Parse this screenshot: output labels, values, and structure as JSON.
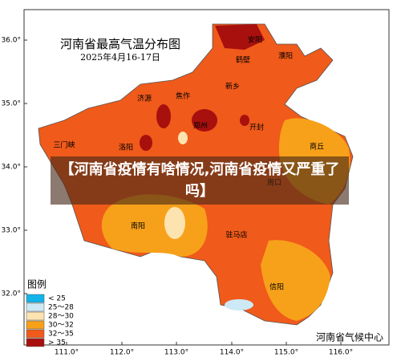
{
  "map": {
    "title": "河南省最高气温分布图",
    "date": "2025年4月16-17日",
    "source": "河南省气候中心",
    "lat_labels": [
      "36.0°",
      "35.0°",
      "34.0°",
      "33.0°",
      "32.0°"
    ],
    "lon_labels": [
      "111.0°",
      "112.0°",
      "113.0°",
      "114.0°",
      "115.0°",
      "116.0°"
    ],
    "cities": [
      "安阳",
      "鹤壁",
      "濮阳",
      "新乡",
      "济源",
      "焦作",
      "郑州",
      "开封",
      "三门峡",
      "洛阳",
      "商丘",
      "周口",
      "南阳",
      "驻马店",
      "信阳"
    ],
    "legend": {
      "title": "图例",
      "items": [
        "< 25",
        "25～28",
        "28～30",
        "30～32",
        "32～35",
        "> 35"
      ]
    }
  },
  "headline": "【河南省疫情有啥情况,河南省疫情又严重了吗】"
}
